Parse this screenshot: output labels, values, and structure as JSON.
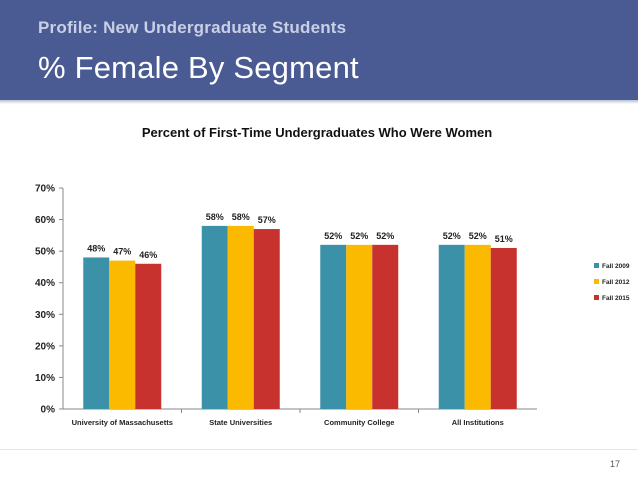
{
  "slide": {
    "subtitle": "Profile: New Undergraduate Students",
    "title": "% Female By Segment",
    "page_number": "17",
    "header_color": "#4a5a93"
  },
  "chart_data": {
    "type": "bar",
    "title": "Percent of First-Time Undergraduates Who Were Women",
    "categories": [
      "University of Massachusetts",
      "State Universities",
      "Community College",
      "All Institutions"
    ],
    "series": [
      {
        "name": "Fall 2009",
        "color": "#3b92a8",
        "values": [
          48,
          58,
          52,
          52
        ],
        "labels": [
          "48%",
          "58%",
          "52%",
          "52%"
        ]
      },
      {
        "name": "Fall 2012",
        "color": "#fbb900",
        "values": [
          47,
          58,
          52,
          52
        ],
        "labels": [
          "47%",
          "58%",
          "52%",
          "52%"
        ]
      },
      {
        "name": "Fall 2015",
        "color": "#c8322e",
        "values": [
          46,
          57,
          52,
          51
        ],
        "labels": [
          "46%",
          "57%",
          "52%",
          "51%"
        ]
      }
    ],
    "ylim": [
      0,
      70
    ],
    "yticks": [
      "0%",
      "10%",
      "20%",
      "30%",
      "40%",
      "50%",
      "60%",
      "70%"
    ],
    "legend_position": "right",
    "grid": false
  }
}
